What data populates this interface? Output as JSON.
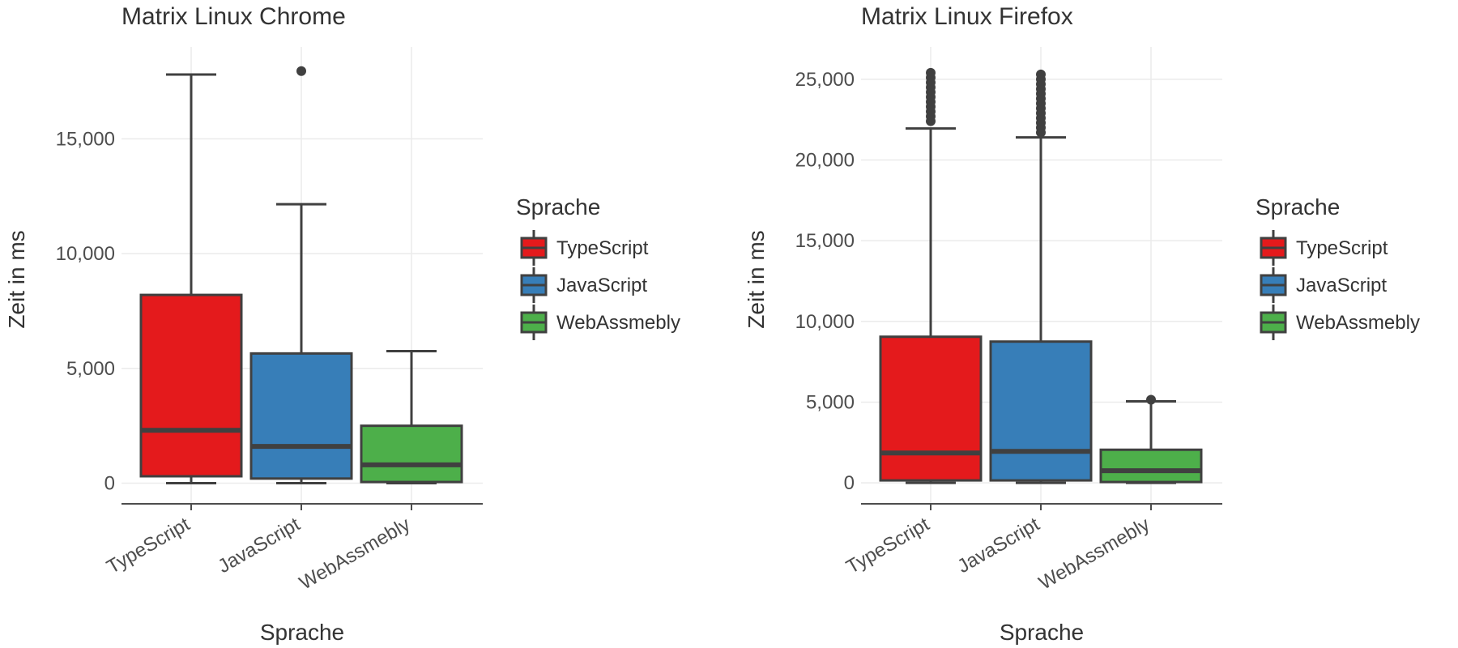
{
  "chart_data": [
    {
      "type": "boxplot",
      "title": "Matrix Linux Chrome",
      "xlabel": "Sprache",
      "ylabel": "Zeit in ms",
      "categories": [
        "TypeScript",
        "JavaScript",
        "WebAssmebly"
      ],
      "y_ticks": [
        0,
        5000,
        10000,
        15000
      ],
      "y_tick_labels": [
        "0",
        "5,000",
        "10,000",
        "15,000"
      ],
      "ylim": [
        -900,
        19000
      ],
      "boxes": [
        {
          "name": "TypeScript",
          "whisker_low": 0,
          "q1": 300,
          "median": 2300,
          "q3": 8200,
          "whisker_high": 17800,
          "outliers": []
        },
        {
          "name": "JavaScript",
          "whisker_low": 0,
          "q1": 200,
          "median": 1600,
          "q3": 5650,
          "whisker_high": 12150,
          "outliers": [
            17950
          ]
        },
        {
          "name": "WebAssmebly",
          "whisker_low": 0,
          "q1": 50,
          "median": 800,
          "q3": 2500,
          "whisker_high": 5750,
          "outliers": []
        }
      ],
      "legend": {
        "title": "Sprache",
        "position": "right",
        "entries": [
          "TypeScript",
          "JavaScript",
          "WebAssmebly"
        ]
      },
      "grid": true
    },
    {
      "type": "boxplot",
      "title": "Matrix Linux Firefox",
      "xlabel": "Sprache",
      "ylabel": "Zeit in ms",
      "categories": [
        "TypeScript",
        "JavaScript",
        "WebAssmebly"
      ],
      "y_ticks": [
        0,
        5000,
        10000,
        15000,
        20000,
        25000
      ],
      "y_tick_labels": [
        "0",
        "5,000",
        "10,000",
        "15,000",
        "20,000",
        "25,000"
      ],
      "ylim": [
        -1300,
        27000
      ],
      "boxes": [
        {
          "name": "TypeScript",
          "whisker_low": 0,
          "q1": 150,
          "median": 1850,
          "q3": 9050,
          "whisker_high": 21950,
          "outliers": [
            22400,
            22700,
            23000,
            23300,
            23600,
            23900,
            24200,
            24500,
            24800,
            25100,
            25400
          ]
        },
        {
          "name": "JavaScript",
          "whisker_low": 0,
          "q1": 150,
          "median": 1950,
          "q3": 8750,
          "whisker_high": 21400,
          "outliers": [
            21700,
            22000,
            22300,
            22600,
            22900,
            23200,
            23500,
            23800,
            24100,
            24400,
            24700,
            25000,
            25300
          ]
        },
        {
          "name": "WebAssmebly",
          "whisker_low": 0,
          "q1": 50,
          "median": 750,
          "q3": 2050,
          "whisker_high": 5050,
          "outliers": [
            5150
          ]
        }
      ],
      "legend": {
        "title": "Sprache",
        "position": "right",
        "entries": [
          "TypeScript",
          "JavaScript",
          "WebAssmebly"
        ]
      },
      "grid": true
    }
  ],
  "colors": {
    "TypeScript": "#e41a1c",
    "JavaScript": "#377eb8",
    "WebAssmebly": "#4daf4a",
    "box_outline": "#404040",
    "grid": "#ebebeb",
    "axis": "#4d4d4d"
  }
}
